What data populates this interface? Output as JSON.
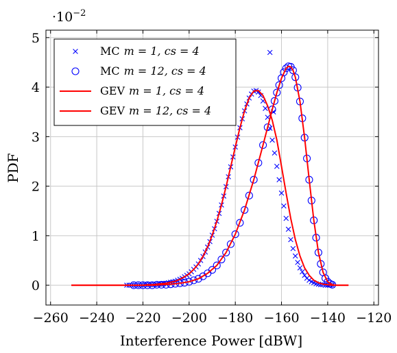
{
  "chart_data": {
    "type": "scatter",
    "xlabel": "Interference Power [dBW]",
    "ylabel": "PDF",
    "y_scale_label": "·10",
    "y_scale_exponent": "−2",
    "xlim": [
      -262,
      -118
    ],
    "ylim": [
      -0.4,
      5.15
    ],
    "xticks": [
      -260,
      -240,
      -220,
      -200,
      -180,
      -160,
      -140,
      -120
    ],
    "xtick_labels": [
      "−260",
      "−240",
      "−220",
      "−200",
      "−180",
      "−160",
      "−140",
      "−120"
    ],
    "yticks": [
      0,
      1,
      2,
      3,
      4,
      5
    ],
    "ytick_labels": [
      "0",
      "1",
      "2",
      "3",
      "4",
      "5"
    ],
    "grid": true,
    "legend_position": "top-left",
    "colors": {
      "mc": "#0000ff",
      "gev": "#ff0000"
    },
    "series": [
      {
        "name": "MC m = 1, cs = 4",
        "legend_prefix": "MC",
        "legend_math": "m = 1, cs = 4",
        "kind": "scatter",
        "marker": "x",
        "color": "#0000ff",
        "x": [
          -227,
          -226,
          -225,
          -224,
          -223,
          -222,
          -221,
          -220,
          -219,
          -218,
          -217,
          -216,
          -215,
          -214,
          -213,
          -212,
          -211,
          -210,
          -209,
          -208,
          -207,
          -206,
          -205,
          -204,
          -203,
          -202,
          -201,
          -200,
          -199,
          -198,
          -197,
          -196,
          -195,
          -194,
          -193,
          -192,
          -191,
          -190,
          -189,
          -188,
          -187,
          -186,
          -185,
          -184,
          -183,
          -182,
          -181,
          -180,
          -179,
          -178,
          -177,
          -176,
          -175,
          -174,
          -173,
          -172,
          -171,
          -170,
          -169,
          -168,
          -167,
          -166,
          -165,
          -164,
          -163,
          -162,
          -161,
          -160,
          -159,
          -158,
          -157,
          -156,
          -155,
          -154,
          -153,
          -152,
          -151,
          -150,
          -149,
          -148,
          -147,
          -146,
          -145,
          -144,
          -143,
          -142,
          -141,
          -140,
          -139,
          -138,
          -165,
          -163.5
        ],
        "y": [
          0.0,
          0.0,
          0.0,
          0.0,
          0.0,
          0.0,
          0.0,
          0.0,
          0.01,
          0.01,
          0.01,
          0.01,
          0.01,
          0.02,
          0.02,
          0.03,
          0.03,
          0.04,
          0.05,
          0.06,
          0.07,
          0.08,
          0.1,
          0.12,
          0.14,
          0.17,
          0.2,
          0.23,
          0.27,
          0.32,
          0.37,
          0.43,
          0.5,
          0.58,
          0.67,
          0.77,
          0.88,
          1.01,
          1.14,
          1.29,
          1.45,
          1.62,
          1.8,
          1.99,
          2.19,
          2.39,
          2.59,
          2.79,
          2.99,
          3.18,
          3.36,
          3.52,
          3.66,
          3.78,
          3.86,
          3.92,
          3.93,
          3.9,
          3.83,
          3.72,
          3.57,
          3.39,
          3.17,
          2.93,
          2.67,
          2.4,
          2.13,
          1.86,
          1.6,
          1.35,
          1.13,
          0.92,
          0.74,
          0.59,
          0.46,
          0.35,
          0.27,
          0.2,
          0.14,
          0.1,
          0.07,
          0.05,
          0.03,
          0.02,
          0.01,
          0.01,
          0.0,
          0.0,
          0.0,
          0.0,
          4.7,
          3.5
        ]
      },
      {
        "name": "MC m = 12, cs = 4",
        "legend_prefix": "MC",
        "legend_math": "m = 12, cs = 4",
        "kind": "scatter",
        "marker": "o",
        "color": "#0000ff",
        "x": [
          -224,
          -222,
          -220,
          -218,
          -216,
          -214,
          -212,
          -210,
          -208,
          -206,
          -204,
          -202,
          -200,
          -198,
          -196,
          -194,
          -192,
          -190,
          -188,
          -186,
          -184,
          -182,
          -180,
          -178,
          -176,
          -174,
          -172,
          -170,
          -168,
          -166,
          -164,
          -163,
          -162,
          -161,
          -160,
          -159,
          -158,
          -157,
          -156,
          -155,
          -154,
          -153,
          -152,
          -151,
          -150,
          -149,
          -148,
          -147,
          -146,
          -145,
          -144,
          -143,
          -142,
          -141,
          -140,
          -139,
          -138
        ],
        "y": [
          0.0,
          0.0,
          0.0,
          0.0,
          0.0,
          0.01,
          0.01,
          0.01,
          0.02,
          0.03,
          0.04,
          0.05,
          0.07,
          0.1,
          0.13,
          0.18,
          0.24,
          0.31,
          0.4,
          0.52,
          0.66,
          0.83,
          1.03,
          1.26,
          1.52,
          1.81,
          2.13,
          2.47,
          2.83,
          3.19,
          3.55,
          3.72,
          3.89,
          4.04,
          4.18,
          4.3,
          4.38,
          4.42,
          4.41,
          4.34,
          4.2,
          3.99,
          3.71,
          3.37,
          2.98,
          2.56,
          2.13,
          1.71,
          1.31,
          0.96,
          0.66,
          0.43,
          0.26,
          0.14,
          0.07,
          0.03,
          0.01
        ]
      },
      {
        "name": "GEV m = 1, cs = 4",
        "legend_prefix": "GEV",
        "legend_math": "m = 1, cs = 4",
        "kind": "line",
        "color": "#ff0000",
        "x": [
          -251,
          -228,
          -226,
          -224,
          -222,
          -220,
          -218,
          -216,
          -214,
          -212,
          -210,
          -208,
          -206,
          -204,
          -202,
          -200,
          -198,
          -196,
          -194,
          -192,
          -190,
          -188,
          -186,
          -184,
          -182,
          -180,
          -178,
          -176,
          -174,
          -172,
          -170,
          -168,
          -166,
          -165,
          -164,
          -162,
          -160,
          -158,
          -156,
          -154,
          -152,
          -150,
          -148,
          -146,
          -144,
          -142,
          -140,
          -138,
          -136,
          -131
        ],
        "y": [
          0,
          0,
          0.0,
          0.0,
          0.0,
          0.0,
          0.01,
          0.01,
          0.02,
          0.03,
          0.04,
          0.06,
          0.08,
          0.12,
          0.17,
          0.23,
          0.32,
          0.43,
          0.58,
          0.77,
          1.01,
          1.29,
          1.62,
          1.99,
          2.39,
          2.79,
          3.18,
          3.52,
          3.78,
          3.92,
          3.93,
          3.83,
          3.62,
          3.48,
          3.33,
          2.93,
          2.4,
          1.86,
          1.35,
          0.92,
          0.59,
          0.35,
          0.2,
          0.1,
          0.05,
          0.02,
          0.01,
          0.0,
          0,
          0
        ]
      },
      {
        "name": "GEV m = 12, cs = 4",
        "legend_prefix": "GEV",
        "legend_math": "m = 12, cs = 4",
        "kind": "line",
        "color": "#ff0000",
        "x": [
          -251,
          -228,
          -224,
          -220,
          -216,
          -212,
          -208,
          -204,
          -200,
          -196,
          -192,
          -188,
          -184,
          -180,
          -176,
          -172,
          -168,
          -166,
          -164,
          -162,
          -160,
          -158,
          -157,
          -156,
          -155,
          -154,
          -152,
          -150,
          -148,
          -146,
          -144,
          -142,
          -140,
          -138,
          -136,
          -131
        ],
        "y": [
          0,
          0,
          0.0,
          0.0,
          0.0,
          0.01,
          0.02,
          0.04,
          0.07,
          0.13,
          0.24,
          0.4,
          0.66,
          1.03,
          1.52,
          2.13,
          2.83,
          3.19,
          3.55,
          3.89,
          4.18,
          4.38,
          4.42,
          4.41,
          4.34,
          4.2,
          3.71,
          2.98,
          2.13,
          1.31,
          0.66,
          0.26,
          0.07,
          0.01,
          0,
          0
        ]
      }
    ]
  }
}
